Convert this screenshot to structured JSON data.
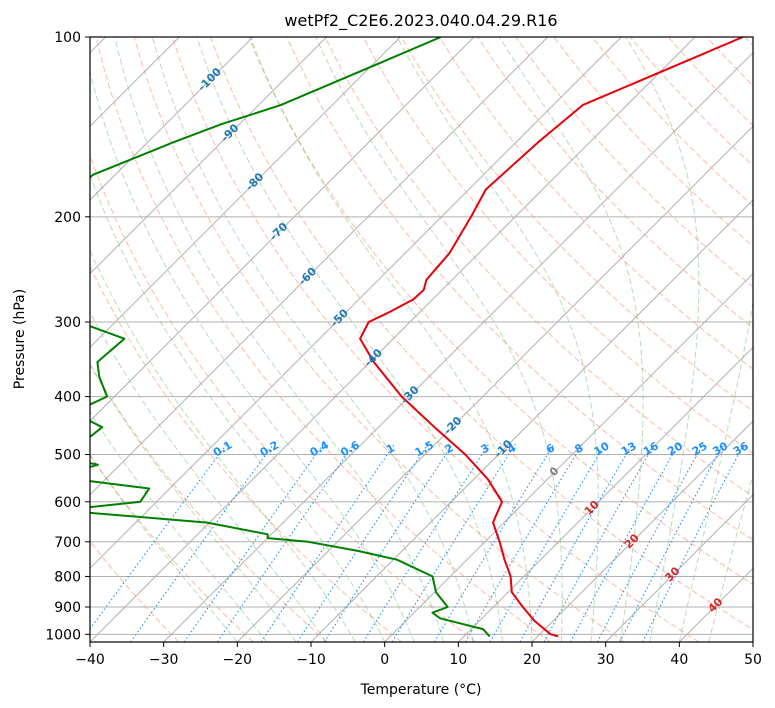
{
  "chart_data": {
    "type": "line",
    "title": "wetPf2_C2E6.2023.040.04.29.R16",
    "xlabel": "Temperature (°C)",
    "ylabel": "Pressure (hPa)",
    "xlim": [
      -40,
      50
    ],
    "ylim": [
      1030,
      100
    ],
    "y_scale": "log",
    "x_ticks": [
      -40,
      -30,
      -20,
      -10,
      0,
      10,
      20,
      30,
      40,
      50
    ],
    "x_tick_labels": [
      "−40",
      "−30",
      "−20",
      "−10",
      "0",
      "10",
      "20",
      "30",
      "40",
      "50"
    ],
    "y_ticks": [
      100,
      200,
      300,
      400,
      500,
      600,
      700,
      800,
      900,
      1000
    ],
    "y_tick_labels": [
      "100",
      "200",
      "300",
      "400",
      "500",
      "600",
      "700",
      "800",
      "900",
      "1000"
    ],
    "grid": true,
    "skew": 1.0,
    "series": [
      {
        "name": "temperature",
        "color": "#e8000b",
        "points": [
          [
            100,
            -33.5
          ],
          [
            130,
            -46
          ],
          [
            150,
            -47
          ],
          [
            180,
            -47.7
          ],
          [
            200,
            -46
          ],
          [
            230,
            -44
          ],
          [
            255,
            -43.5
          ],
          [
            265,
            -42.5
          ],
          [
            275,
            -42.6
          ],
          [
            290,
            -44.3
          ],
          [
            300,
            -45.6
          ],
          [
            320,
            -44.5
          ],
          [
            350,
            -39.5
          ],
          [
            400,
            -31
          ],
          [
            450,
            -22.4
          ],
          [
            500,
            -14.5
          ],
          [
            550,
            -8.1
          ],
          [
            600,
            -3.1
          ],
          [
            650,
            -1.5
          ],
          [
            700,
            2
          ],
          [
            750,
            5.1
          ],
          [
            800,
            8.2
          ],
          [
            850,
            10.5
          ],
          [
            900,
            14
          ],
          [
            950,
            17.5
          ],
          [
            1000,
            21.5
          ],
          [
            1008,
            22.8
          ]
        ]
      },
      {
        "name": "dewpoint",
        "color": "#008000",
        "points": [
          [
            100,
            -74.5
          ],
          [
            110,
            -79
          ],
          [
            130,
            -87
          ],
          [
            140,
            -92.5
          ],
          [
            150,
            -96.5
          ],
          [
            170,
            -103
          ],
          [
            185,
            -104
          ],
          [
            210,
            -98.5
          ],
          [
            230,
            -108
          ],
          [
            235,
            -115.5
          ],
          [
            237,
            -116
          ],
          [
            250,
            -103
          ],
          [
            253,
            -103
          ],
          [
            258,
            -111.5
          ],
          [
            266,
            -116.5
          ],
          [
            272,
            -115.5
          ],
          [
            285,
            -106
          ],
          [
            300,
            -85
          ],
          [
            320,
            -76.5
          ],
          [
            350,
            -77
          ],
          [
            370,
            -74.8
          ],
          [
            400,
            -71
          ],
          [
            425,
            -73.5
          ],
          [
            450,
            -67.5
          ],
          [
            475,
            -68
          ],
          [
            500,
            -71.3
          ],
          [
            520,
            -63
          ],
          [
            545,
            -67
          ],
          [
            570,
            -52.8
          ],
          [
            600,
            -52.2
          ],
          [
            620,
            -62
          ],
          [
            650,
            -40.3
          ],
          [
            680,
            -30.5
          ],
          [
            690,
            -30
          ],
          [
            700,
            -24
          ],
          [
            725,
            -16
          ],
          [
            750,
            -9.5
          ],
          [
            800,
            -2.4
          ],
          [
            850,
            0.2
          ],
          [
            900,
            3.8
          ],
          [
            920,
            2.5
          ],
          [
            940,
            4.3
          ],
          [
            980,
            11.6
          ],
          [
            1008,
            13.5
          ]
        ]
      }
    ],
    "isotherms": [
      -100,
      -90,
      -80,
      -70,
      -60,
      -50,
      -40,
      -30,
      -20,
      -10,
      0,
      10,
      20,
      30,
      40
    ],
    "isotherm_labels": [
      "-100",
      "-90",
      "-80",
      "-70",
      "-60",
      "-50",
      "-40",
      "-30",
      "-20",
      "-10",
      "0",
      "10",
      "20",
      "30",
      "40"
    ],
    "mixing_ratios": [
      0.1,
      0.2,
      0.4,
      0.6,
      1,
      1.5,
      2,
      3,
      4,
      6,
      8,
      10,
      13,
      16,
      20,
      25,
      30,
      36
    ],
    "mixing_ratio_labels": [
      "0.1",
      "0.2",
      "0.4",
      "0.6",
      "1",
      "1.5",
      "2",
      "3",
      "4",
      "6",
      "8",
      "10",
      "13",
      "16",
      "20",
      "25",
      "30",
      "36"
    ],
    "colors": {
      "isotherm_cold": "#1f77b4",
      "isotherm_zero": "#808080",
      "isotherm_warm": "#d62728",
      "mixing_ratio": "#1e90ff",
      "dry_adiabat": "#ff8060",
      "moist_adiabat": "#2ca02c",
      "grid": "#b0b0b0"
    }
  }
}
